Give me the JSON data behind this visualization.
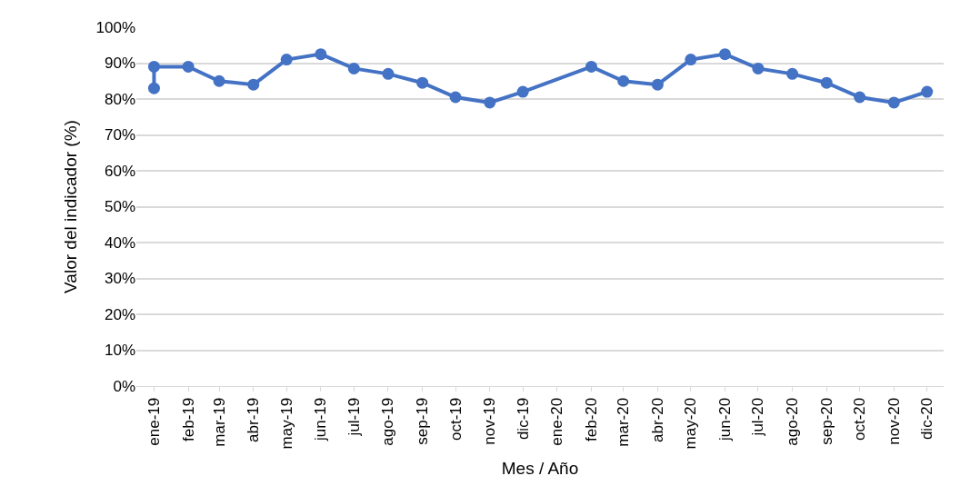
{
  "chart_data": {
    "type": "line",
    "xlabel": "Mes / Año",
    "ylabel": "Valor del indicador (%)",
    "series": [
      {
        "color": "#4472c4",
        "x": [
          "2019-01",
          "2019-01",
          "2019-02",
          "2019-03",
          "2019-04",
          "2019-05",
          "2019-06",
          "2019-07",
          "2019-08",
          "2019-09",
          "2019-10",
          "2019-11",
          "2019-12",
          "2020-02",
          "2020-03",
          "2020-04",
          "2020-05",
          "2020-06",
          "2020-07",
          "2020-08",
          "2020-09",
          "2020-10",
          "2020-11",
          "2020-12"
        ],
        "values": [
          83,
          89,
          89,
          85,
          84,
          91,
          92.5,
          88.5,
          87,
          84.5,
          80.5,
          79,
          82,
          89,
          85,
          84,
          91,
          92.5,
          88.5,
          87,
          84.5,
          80.5,
          79,
          82
        ]
      }
    ],
    "xlim": [
      "2018-12-16",
      "2020-12-16"
    ],
    "xticks": [
      {
        "value": "2019-01",
        "label": "ene-19"
      },
      {
        "value": "2019-02",
        "label": "feb-19"
      },
      {
        "value": "2019-03",
        "label": "mar-19"
      },
      {
        "value": "2019-04",
        "label": "abr-19"
      },
      {
        "value": "2019-05",
        "label": "may-19"
      },
      {
        "value": "2019-06",
        "label": "jun-19"
      },
      {
        "value": "2019-07",
        "label": "jul-19"
      },
      {
        "value": "2019-08",
        "label": "ago-19"
      },
      {
        "value": "2019-09",
        "label": "sep-19"
      },
      {
        "value": "2019-10",
        "label": "oct-19"
      },
      {
        "value": "2019-11",
        "label": "nov-19"
      },
      {
        "value": "2019-12",
        "label": "dic-19"
      },
      {
        "value": "2020-01",
        "label": "ene-20"
      },
      {
        "value": "2020-02",
        "label": "feb-20"
      },
      {
        "value": "2020-03",
        "label": "mar-20"
      },
      {
        "value": "2020-04",
        "label": "abr-20"
      },
      {
        "value": "2020-05",
        "label": "may-20"
      },
      {
        "value": "2020-06",
        "label": "jun-20"
      },
      {
        "value": "2020-07",
        "label": "jul-20"
      },
      {
        "value": "2020-08",
        "label": "ago-20"
      },
      {
        "value": "2020-09",
        "label": "sep-20"
      },
      {
        "value": "2020-10",
        "label": "oct-20"
      },
      {
        "value": "2020-11",
        "label": "nov-20"
      },
      {
        "value": "2020-12",
        "label": "dic-20"
      }
    ],
    "ylim": [
      0,
      100
    ],
    "yticks": [
      {
        "value": 0,
        "label": "0%"
      },
      {
        "value": 10,
        "label": "10%"
      },
      {
        "value": 20,
        "label": "20%"
      },
      {
        "value": 30,
        "label": "30%"
      },
      {
        "value": 40,
        "label": "40%"
      },
      {
        "value": 50,
        "label": "50%"
      },
      {
        "value": 60,
        "label": "60%"
      },
      {
        "value": 70,
        "label": "70%"
      },
      {
        "value": 80,
        "label": "80%"
      },
      {
        "value": 90,
        "label": "90%"
      },
      {
        "value": 100,
        "label": "100%"
      }
    ],
    "grid": "y",
    "marker": "circle",
    "line_style": "solid"
  }
}
